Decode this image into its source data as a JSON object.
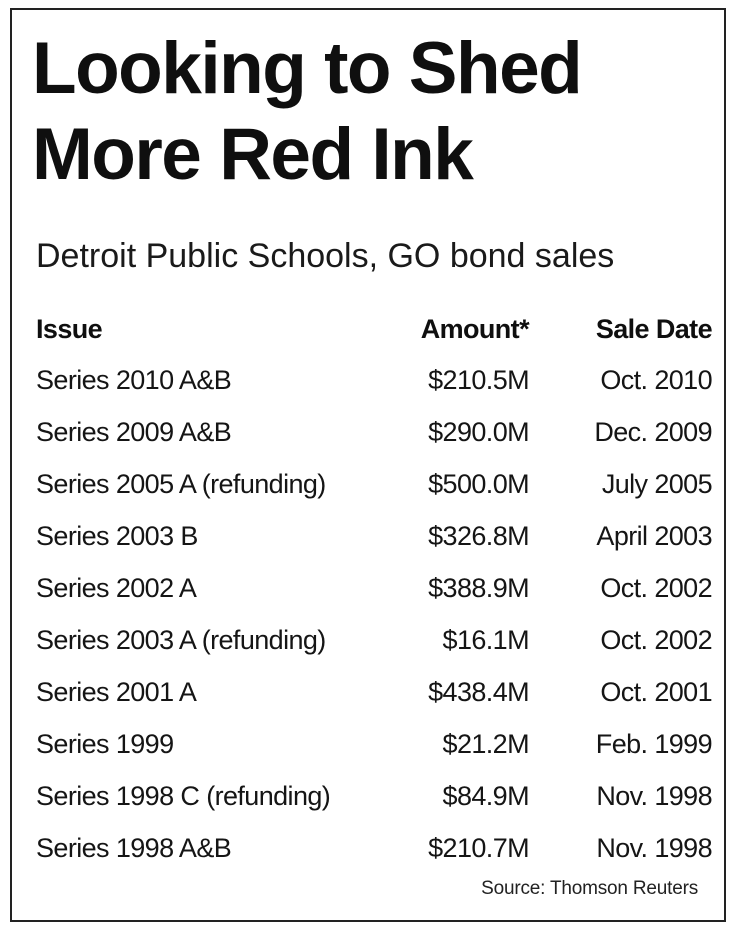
{
  "title_lines": [
    "Looking to Shed",
    "More Red Ink"
  ],
  "subtitle": "Detroit Public Schools, GO bond sales",
  "table": {
    "headers": {
      "issue": "Issue",
      "amount": "Amount*",
      "date": "Sale Date"
    },
    "rows": [
      {
        "issue": "Series 2010 A&B",
        "amount": "$210.5M",
        "date": "Oct. 2010"
      },
      {
        "issue": "Series 2009 A&B",
        "amount": "$290.0M",
        "date": "Dec. 2009"
      },
      {
        "issue": "Series 2005 A (refunding)",
        "amount": "$500.0M",
        "date": "July 2005"
      },
      {
        "issue": "Series 2003 B",
        "amount": "$326.8M",
        "date": "April 2003"
      },
      {
        "issue": "Series 2002 A",
        "amount": "$388.9M",
        "date": "Oct. 2002"
      },
      {
        "issue": "Series 2003 A (refunding)",
        "amount": "$16.1M",
        "date": "Oct. 2002"
      },
      {
        "issue": "Series 2001 A",
        "amount": "$438.4M",
        "date": "Oct. 2001"
      },
      {
        "issue": "Series 1999",
        "amount": "$21.2M",
        "date": "Feb. 1999"
      },
      {
        "issue": "Series 1998 C (refunding)",
        "amount": "$84.9M",
        "date": "Nov. 1998"
      },
      {
        "issue": "Series 1998 A&B",
        "amount": "$210.7M",
        "date": "Nov. 1998"
      }
    ]
  },
  "source": "Source: Thomson Reuters"
}
